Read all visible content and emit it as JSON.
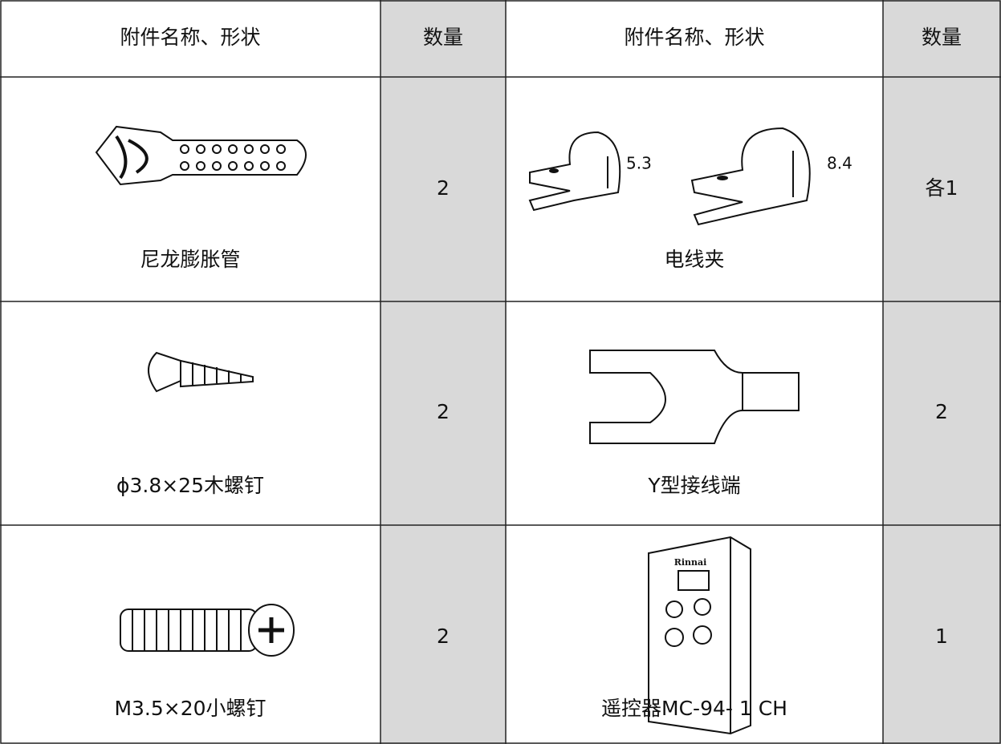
{
  "table": {
    "header": [
      "附件名称、形状",
      "数量",
      "附件名称、形状",
      "数量"
    ],
    "rows": [
      [
        "尼龙膨胀管",
        "2",
        "电线夹",
        "各1"
      ],
      [
        "ϕ3.8×25木螺钉",
        "2",
        "Y型接线端",
        "2"
      ],
      [
        "M3.5×20小螺钉",
        "2",
        "遥控器MC-94- 1 CH",
        "1"
      ]
    ]
  },
  "annotations": {
    "clip_sizes": [
      "5.3",
      "8.4"
    ],
    "remote_brand": "Rinnai"
  }
}
